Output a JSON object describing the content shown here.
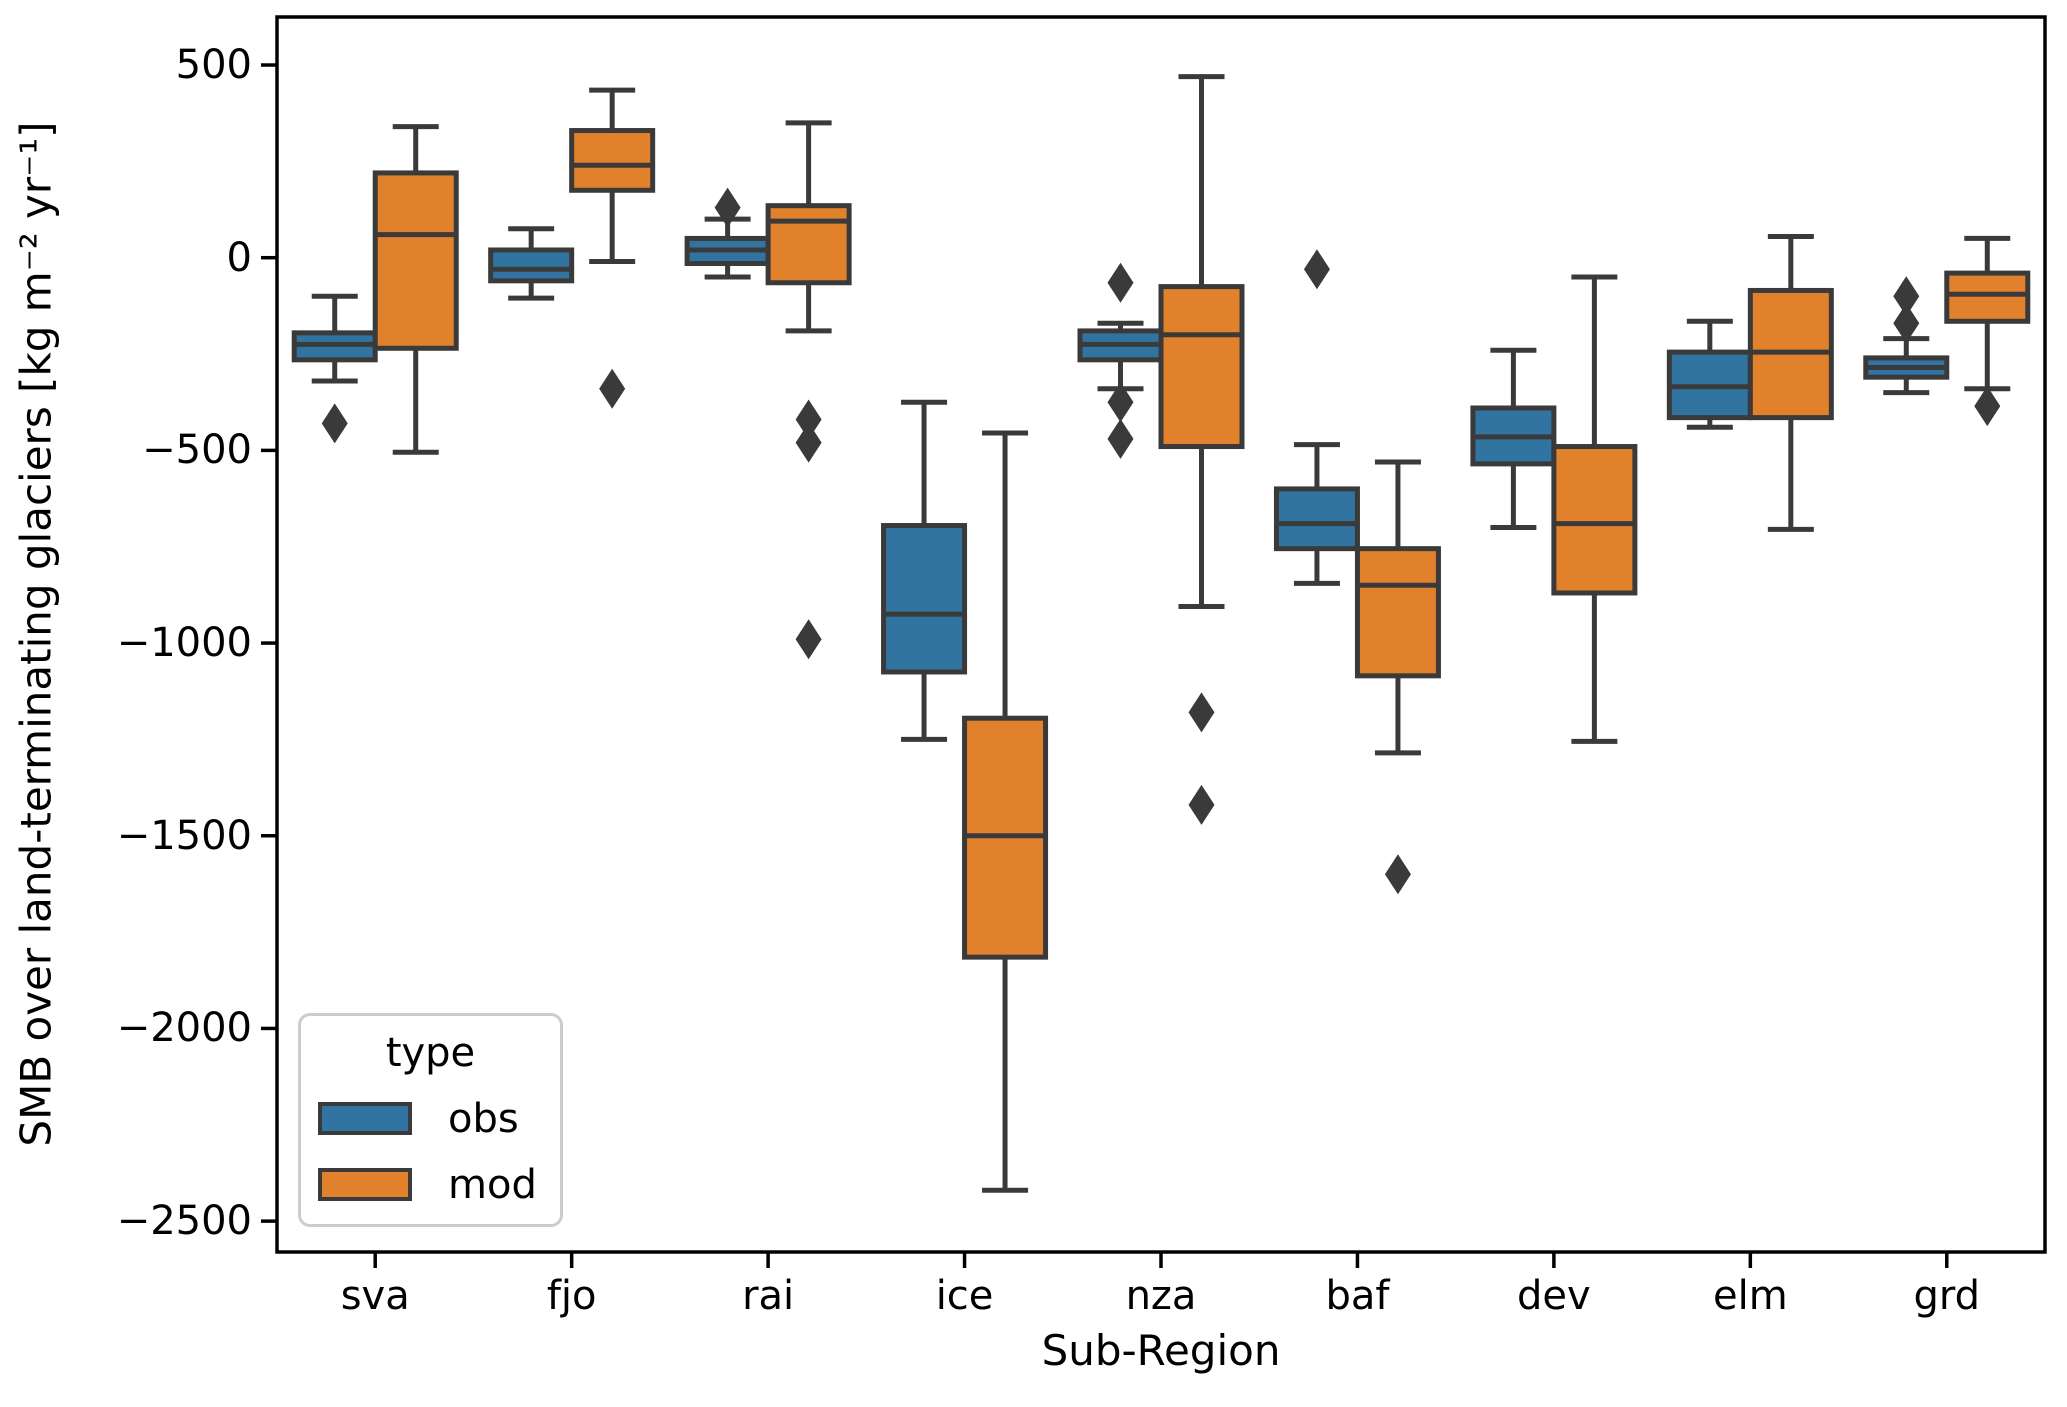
{
  "figure": {
    "background": "#ffffff"
  },
  "chart_data": {
    "type": "boxplot",
    "subtype": "grouped-vertical-boxplot-with-outliers",
    "title": "",
    "xlabel": "Sub-Region",
    "ylabel": "SMB over land-terminating glaciers [kg m⁻² yr⁻¹]",
    "categories": [
      "sva",
      "fjo",
      "rai",
      "ice",
      "nza",
      "baf",
      "dev",
      "elm",
      "grd"
    ],
    "yticks": [
      500,
      0,
      -500,
      -1000,
      -1500,
      -2000,
      -2500
    ],
    "ytick_labels": [
      "500",
      "0",
      "−500",
      "−1000",
      "−1500",
      "−2000",
      "−2500"
    ],
    "ylim": [
      -2580,
      625
    ],
    "grid": false,
    "legend": {
      "title": "type",
      "position": "lower-left",
      "entries": [
        {
          "label": "obs",
          "color": "#3274a1"
        },
        {
          "label": "mod",
          "color": "#e1812c"
        }
      ]
    },
    "colors": {
      "obs_fill": "#3274a1",
      "mod_fill": "#e1812c",
      "box_edge": "#3a3a3a",
      "flier": "#3a3a3a",
      "axis": "#000000"
    },
    "series": [
      {
        "name": "obs",
        "color": "#3274a1",
        "boxes": [
          {
            "category": "sva",
            "whislo": -320,
            "q1": -265,
            "med": -225,
            "q3": -195,
            "whishi": -100,
            "outliers": [
              -430
            ]
          },
          {
            "category": "fjo",
            "whislo": -105,
            "q1": -60,
            "med": -30,
            "q3": 20,
            "whishi": 75,
            "outliers": []
          },
          {
            "category": "rai",
            "whislo": -50,
            "q1": -15,
            "med": 20,
            "q3": 50,
            "whishi": 100,
            "outliers": [
              130
            ]
          },
          {
            "category": "ice",
            "whislo": -1250,
            "q1": -1075,
            "med": -925,
            "q3": -695,
            "whishi": -375,
            "outliers": []
          },
          {
            "category": "nza",
            "whislo": -340,
            "q1": -265,
            "med": -225,
            "q3": -190,
            "whishi": -170,
            "outliers": [
              -65,
              -375,
              -470
            ]
          },
          {
            "category": "baf",
            "whislo": -845,
            "q1": -755,
            "med": -690,
            "q3": -600,
            "whishi": -485,
            "outliers": [
              -30
            ]
          },
          {
            "category": "dev",
            "whislo": -700,
            "q1": -535,
            "med": -465,
            "q3": -390,
            "whishi": -240,
            "outliers": []
          },
          {
            "category": "elm",
            "whislo": -440,
            "q1": -415,
            "med": -335,
            "q3": -245,
            "whishi": -165,
            "outliers": []
          },
          {
            "category": "grd",
            "whislo": -350,
            "q1": -310,
            "med": -285,
            "q3": -260,
            "whishi": -210,
            "outliers": [
              -100,
              -170
            ]
          }
        ]
      },
      {
        "name": "mod",
        "color": "#e1812c",
        "boxes": [
          {
            "category": "sva",
            "whislo": -505,
            "q1": -235,
            "med": 60,
            "q3": 220,
            "whishi": 340,
            "outliers": []
          },
          {
            "category": "fjo",
            "whislo": -10,
            "q1": 175,
            "med": 240,
            "q3": 330,
            "whishi": 435,
            "outliers": [
              -340
            ]
          },
          {
            "category": "rai",
            "whislo": -190,
            "q1": -65,
            "med": 95,
            "q3": 135,
            "whishi": 350,
            "outliers": [
              -420,
              -480,
              -990
            ]
          },
          {
            "category": "ice",
            "whislo": -2420,
            "q1": -1815,
            "med": -1500,
            "q3": -1195,
            "whishi": -455,
            "outliers": []
          },
          {
            "category": "nza",
            "whislo": -905,
            "q1": -490,
            "med": -200,
            "q3": -75,
            "whishi": 470,
            "outliers": [
              -1180,
              -1420
            ]
          },
          {
            "category": "baf",
            "whislo": -1285,
            "q1": -1085,
            "med": -850,
            "q3": -755,
            "whishi": -530,
            "outliers": [
              -1600
            ]
          },
          {
            "category": "dev",
            "whislo": -1255,
            "q1": -870,
            "med": -690,
            "q3": -490,
            "whishi": -50,
            "outliers": []
          },
          {
            "category": "elm",
            "whislo": -705,
            "q1": -415,
            "med": -245,
            "q3": -85,
            "whishi": 55,
            "outliers": []
          },
          {
            "category": "grd",
            "whislo": -340,
            "q1": -165,
            "med": -95,
            "q3": -40,
            "whishi": 50,
            "outliers": [
              -385
            ]
          }
        ]
      }
    ]
  }
}
